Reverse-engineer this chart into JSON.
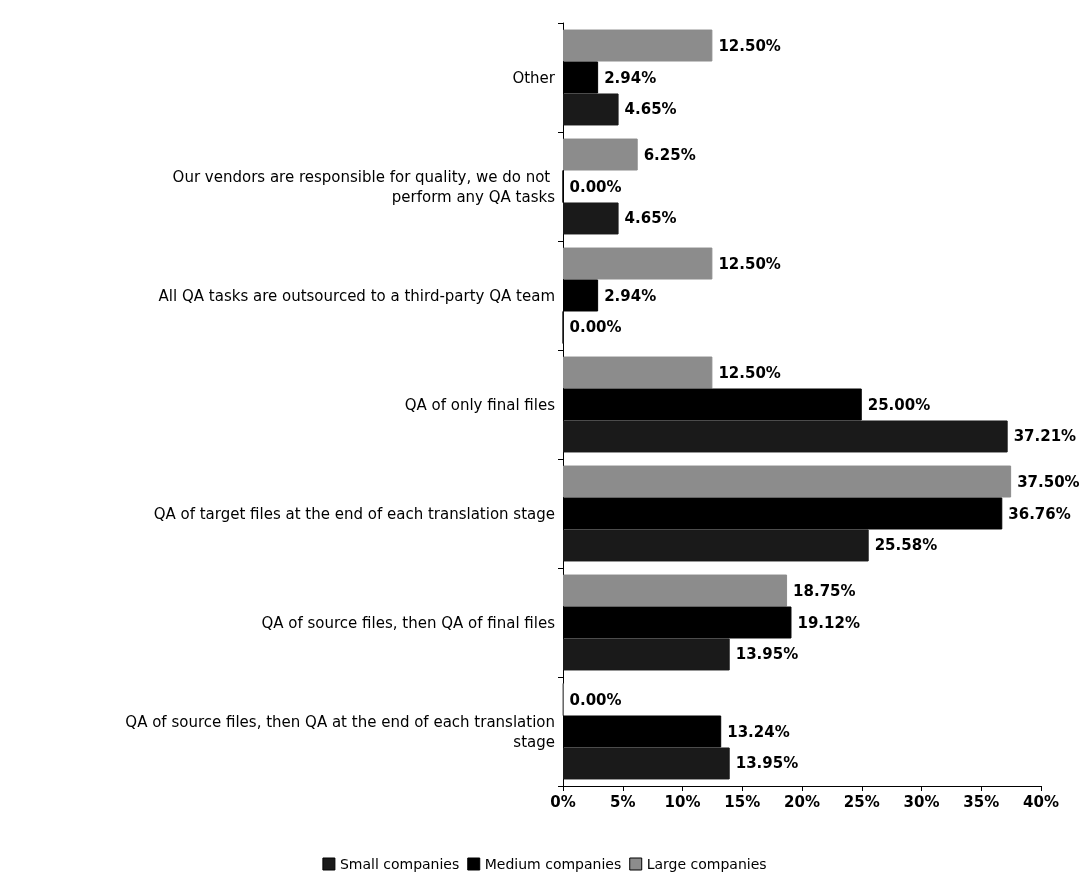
{
  "chart_data": {
    "type": "bar",
    "orientation": "horizontal",
    "categories": [
      "Other",
      "Our vendors are responsible for quality, we do not perform any QA tasks",
      "All QA tasks are outsourced to a third-party QA team",
      "QA of only final files",
      "QA of target files at the end of each translation stage",
      "QA of source files, then QA of final files",
      "QA of source files, then QA at the end of each translation stage"
    ],
    "series": [
      {
        "name": "Small companies",
        "color": "#1a1a1a",
        "values": [
          4.65,
          4.65,
          0,
          37.21,
          25.58,
          13.95,
          13.95
        ],
        "value_labels": [
          "4.65%",
          "4.65%",
          "0.00%",
          "37.21%",
          "25.58%",
          "13.95%",
          "13.95%"
        ]
      },
      {
        "name": "Medium companies",
        "color": "#000000",
        "values": [
          2.94,
          0,
          2.94,
          25,
          36.76,
          19.12,
          13.24
        ],
        "value_labels": [
          "2.94%",
          "0.00%",
          "2.94%",
          "25.00%",
          "36.76%",
          "19.12%",
          "13.24%"
        ]
      },
      {
        "name": "Large companies",
        "color": "#8c8c8c",
        "values": [
          12.5,
          6.25,
          12.5,
          12.5,
          37.5,
          18.75,
          0
        ],
        "value_labels": [
          "12.50%",
          "6.25%",
          "12.50%",
          "12.50%",
          "37.50%",
          "18.75%",
          "0.00%"
        ]
      }
    ],
    "xlim": [
      0,
      40
    ],
    "xticks": [
      {
        "value": 0,
        "label": "0%"
      },
      {
        "value": 5,
        "label": "5%"
      },
      {
        "value": 10,
        "label": "10%"
      },
      {
        "value": 15,
        "label": "15%"
      },
      {
        "value": 20,
        "label": "20%"
      },
      {
        "value": 25,
        "label": "25%"
      },
      {
        "value": 30,
        "label": "30%"
      },
      {
        "value": 35,
        "label": "35%"
      },
      {
        "value": 40,
        "label": "40%"
      }
    ],
    "legend": "bottom",
    "grid": false
  }
}
